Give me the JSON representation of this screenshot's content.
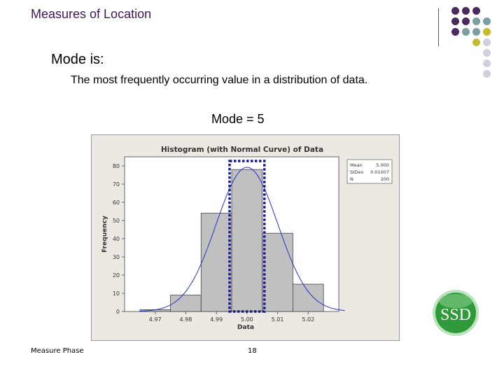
{
  "slide": {
    "title": "Measures of Location",
    "heading": "Mode is:",
    "definition": "The most frequently occurring value in a distribution of data.",
    "mode_statement": "Mode = 5"
  },
  "footer": {
    "left": "Measure Phase",
    "page": "18"
  },
  "logo": {
    "text": "SSD",
    "color": "#2e9a3a"
  },
  "decoration": {
    "dot_colors": {
      "purple": "#4a2a5e",
      "teal": "#7a9fa0",
      "olive": "#c4bc2c",
      "light": "#d0d0dc"
    }
  },
  "chart_data": {
    "type": "bar",
    "title": "Histogram (with Normal Curve) of Data",
    "xlabel": "Data",
    "ylabel": "Frequency",
    "x_ticks": [
      "4.97",
      "4.98",
      "4.99",
      "5.00",
      "5.01",
      "5.02"
    ],
    "y_ticks": [
      0,
      10,
      20,
      30,
      40,
      50,
      60,
      70,
      80
    ],
    "ylim": [
      0,
      85
    ],
    "xlim": [
      4.96,
      5.03
    ],
    "bins": [
      {
        "center": 4.97,
        "value": 1
      },
      {
        "center": 4.98,
        "value": 9
      },
      {
        "center": 4.99,
        "value": 54
      },
      {
        "center": 5.0,
        "value": 78
      },
      {
        "center": 5.01,
        "value": 43
      },
      {
        "center": 5.02,
        "value": 15
      }
    ],
    "bin_width": 0.01,
    "normal_curve": {
      "mean": 5.0,
      "stdev": 0.01007,
      "n": 200
    },
    "highlight_bin": 5.0,
    "stats_box": [
      {
        "label": "Mean",
        "value": "5.000"
      },
      {
        "label": "StDev",
        "value": "0.01007"
      },
      {
        "label": "N",
        "value": "200"
      }
    ],
    "colors": {
      "bar": "#c0c0c0",
      "curve": "#2233cc",
      "highlight": "#1a1a8a",
      "panel": "#ece9e2"
    }
  }
}
